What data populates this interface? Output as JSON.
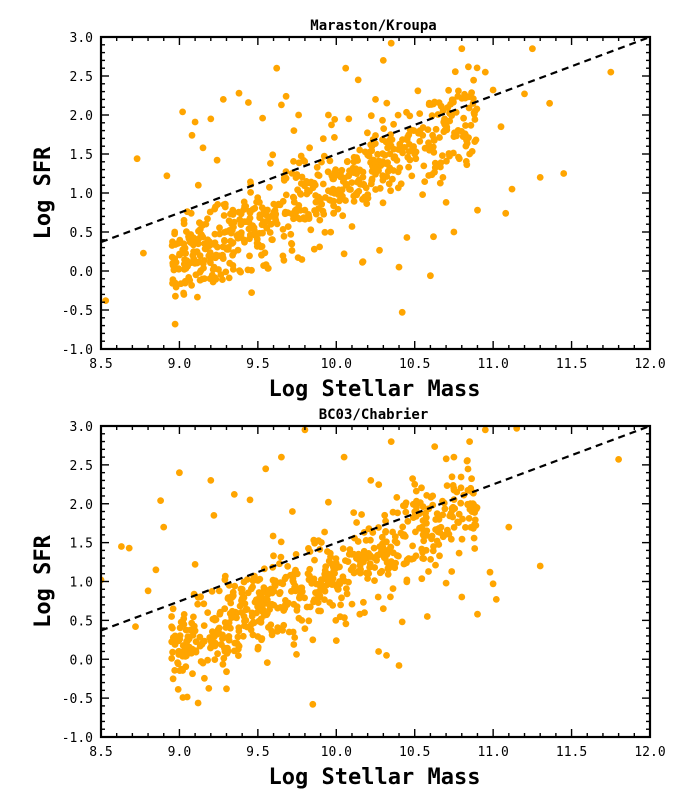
{
  "chart_data": [
    {
      "type": "scatter",
      "title": "Maraston/Kroupa",
      "xlabel": "Log Stellar Mass",
      "ylabel": "Log SFR",
      "xlim": [
        8.5,
        12.0
      ],
      "ylim": [
        -1.0,
        3.0
      ],
      "xticks": [
        "8.5",
        "9.0",
        "9.5",
        "10.0",
        "10.5",
        "11.0",
        "11.5",
        "12.0"
      ],
      "yticks": [
        "-1.0",
        "-0.5",
        "0.0",
        "0.5",
        "1.0",
        "1.5",
        "2.0",
        "2.5",
        "3.0"
      ],
      "color": "#FFA500",
      "fit_line": {
        "x": [
          8.5,
          12.0
        ],
        "y": [
          0.37,
          3.0
        ]
      },
      "outliers": [
        [
          8.53,
          -0.38
        ],
        [
          8.73,
          1.44
        ],
        [
          8.77,
          0.23
        ],
        [
          8.92,
          1.22
        ],
        [
          8.97,
          0.5
        ],
        [
          9.0,
          0.36
        ],
        [
          9.02,
          2.04
        ],
        [
          9.05,
          0.76
        ],
        [
          9.08,
          1.74
        ],
        [
          9.1,
          1.91
        ],
        [
          9.12,
          1.1
        ],
        [
          9.15,
          1.58
        ],
        [
          9.18,
          0.4
        ],
        [
          9.2,
          1.95
        ],
        [
          9.24,
          1.42
        ],
        [
          9.28,
          2.2
        ],
        [
          9.34,
          0.78
        ],
        [
          9.38,
          2.28
        ],
        [
          9.44,
          2.16
        ],
        [
          9.48,
          0.46
        ],
        [
          9.53,
          1.96
        ],
        [
          9.58,
          1.38
        ],
        [
          9.62,
          2.6
        ],
        [
          9.65,
          2.13
        ],
        [
          9.68,
          2.24
        ],
        [
          9.71,
          0.47
        ],
        [
          9.73,
          1.8
        ],
        [
          9.76,
          2.0
        ],
        [
          9.8,
          0.78
        ],
        [
          9.83,
          1.58
        ],
        [
          9.86,
          0.28
        ],
        [
          9.9,
          0.92
        ],
        [
          9.95,
          2.0
        ],
        [
          9.98,
          1.05
        ],
        [
          10.02,
          0.9
        ],
        [
          10.05,
          0.22
        ],
        [
          10.06,
          2.6
        ],
        [
          10.08,
          1.95
        ],
        [
          10.1,
          0.57
        ],
        [
          10.14,
          2.45
        ],
        [
          10.17,
          0.12
        ],
        [
          10.2,
          0.98
        ],
        [
          10.25,
          2.2
        ],
        [
          10.28,
          1.06
        ],
        [
          10.3,
          2.7
        ],
        [
          10.35,
          2.92
        ],
        [
          10.4,
          0.05
        ],
        [
          10.42,
          -0.53
        ],
        [
          10.45,
          0.43
        ],
        [
          10.5,
          1.5
        ],
        [
          10.55,
          0.98
        ],
        [
          10.6,
          -0.06
        ],
        [
          10.62,
          0.44
        ],
        [
          10.68,
          1.2
        ],
        [
          10.7,
          0.88
        ],
        [
          10.75,
          0.5
        ],
        [
          10.8,
          2.85
        ],
        [
          10.85,
          1.5
        ],
        [
          10.9,
          0.78
        ],
        [
          10.95,
          2.55
        ],
        [
          11.0,
          2.32
        ],
        [
          11.05,
          1.85
        ],
        [
          11.08,
          0.74
        ],
        [
          11.12,
          1.05
        ],
        [
          11.2,
          2.27
        ],
        [
          11.25,
          2.85
        ],
        [
          11.3,
          1.2
        ],
        [
          11.36,
          2.15
        ],
        [
          11.45,
          1.25
        ],
        [
          11.75,
          2.55
        ]
      ]
    },
    {
      "type": "scatter",
      "title": "BC03/Chabrier",
      "xlabel": "Log Stellar Mass",
      "ylabel": "Log SFR",
      "xlim": [
        8.5,
        12.0
      ],
      "ylim": [
        -1.0,
        3.0
      ],
      "xticks": [
        "8.5",
        "9.0",
        "9.5",
        "10.0",
        "10.5",
        "11.0",
        "11.5",
        "12.0"
      ],
      "yticks": [
        "-1.0",
        "-0.5",
        "0.0",
        "0.5",
        "1.0",
        "1.5",
        "2.0",
        "2.5",
        "3.0"
      ],
      "color": "#FFA500",
      "fit_line": {
        "x": [
          8.5,
          12.0
        ],
        "y": [
          0.37,
          3.0
        ]
      },
      "outliers": [
        [
          8.5,
          1.02
        ],
        [
          8.63,
          1.45
        ],
        [
          8.68,
          1.43
        ],
        [
          8.72,
          0.42
        ],
        [
          8.8,
          0.88
        ],
        [
          8.85,
          1.15
        ],
        [
          8.88,
          2.04
        ],
        [
          8.9,
          1.7
        ],
        [
          8.95,
          0.55
        ],
        [
          9.0,
          2.4
        ],
        [
          9.02,
          0.48
        ],
        [
          9.05,
          0.23
        ],
        [
          9.1,
          1.22
        ],
        [
          9.15,
          -0.05
        ],
        [
          9.18,
          0.6
        ],
        [
          9.2,
          2.3
        ],
        [
          9.22,
          1.85
        ],
        [
          9.25,
          0.35
        ],
        [
          9.3,
          -0.16
        ],
        [
          9.3,
          -0.38
        ],
        [
          9.35,
          2.12
        ],
        [
          9.4,
          0.78
        ],
        [
          9.45,
          2.05
        ],
        [
          9.5,
          0.13
        ],
        [
          9.55,
          2.45
        ],
        [
          9.6,
          1.33
        ],
        [
          9.65,
          2.6
        ],
        [
          9.7,
          0.35
        ],
        [
          9.72,
          1.9
        ],
        [
          9.78,
          0.5
        ],
        [
          9.8,
          2.95
        ],
        [
          9.85,
          0.25
        ],
        [
          9.85,
          -0.58
        ],
        [
          9.9,
          0.62
        ],
        [
          9.95,
          2.02
        ],
        [
          10.0,
          0.24
        ],
        [
          10.02,
          1.0
        ],
        [
          10.05,
          2.6
        ],
        [
          10.1,
          1.35
        ],
        [
          10.15,
          0.58
        ],
        [
          10.18,
          0.6
        ],
        [
          10.22,
          2.3
        ],
        [
          10.27,
          0.1
        ],
        [
          10.3,
          0.65
        ],
        [
          10.32,
          0.05
        ],
        [
          10.35,
          2.8
        ],
        [
          10.4,
          -0.08
        ],
        [
          10.42,
          0.48
        ],
        [
          10.45,
          1.02
        ],
        [
          10.5,
          2.25
        ],
        [
          10.55,
          1.3
        ],
        [
          10.58,
          0.55
        ],
        [
          10.62,
          1.45
        ],
        [
          10.7,
          0.98
        ],
        [
          10.75,
          2.6
        ],
        [
          10.8,
          0.8
        ],
        [
          10.85,
          2.8
        ],
        [
          10.9,
          0.58
        ],
        [
          10.95,
          2.95
        ],
        [
          10.98,
          1.12
        ],
        [
          11.0,
          0.97
        ],
        [
          11.02,
          0.77
        ],
        [
          11.1,
          1.7
        ],
        [
          11.15,
          2.97
        ],
        [
          11.3,
          1.2
        ],
        [
          11.8,
          2.57
        ]
      ]
    }
  ]
}
